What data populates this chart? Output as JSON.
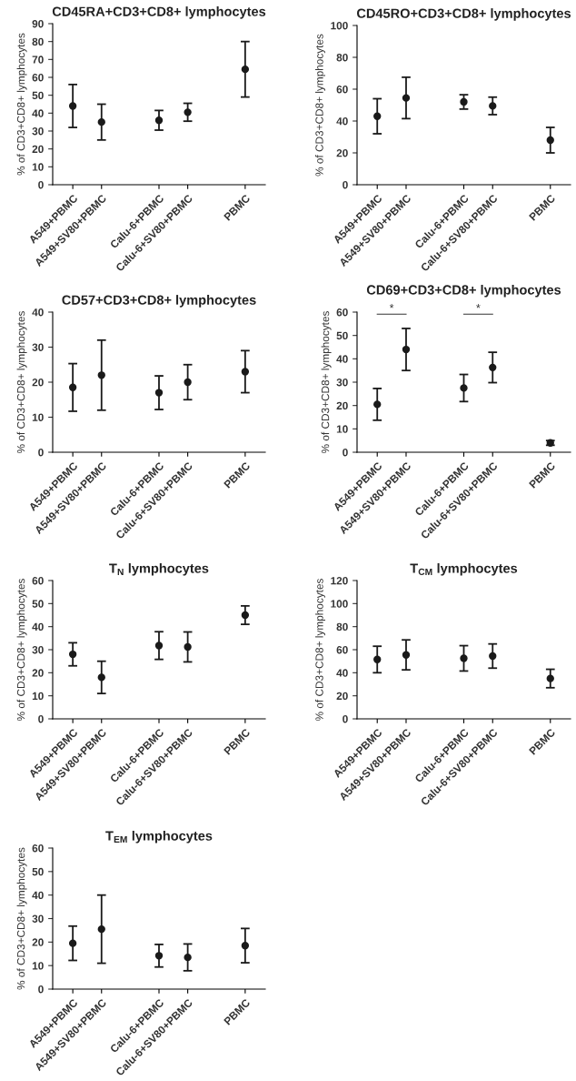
{
  "chart_data": [
    {
      "type": "scatter",
      "title": "CD45RA+CD3+CD8+ lymphocytes",
      "ylabel": "% of CD3+CD8+ lymphocytes",
      "categories": [
        "A549+PBMC",
        "A549+SV80+PBMC",
        null,
        "Calu-6+PBMC",
        "Calu-6+SV80+PBMC",
        null,
        "PBMC"
      ],
      "values": [
        44,
        35,
        null,
        36,
        40.5,
        null,
        64.5
      ],
      "errors": [
        12,
        10,
        null,
        5.5,
        5,
        null,
        15.5
      ],
      "color": "#1a1a1a",
      "marker": "circle",
      "ylim": [
        0,
        90
      ],
      "yticks": [
        0,
        10,
        20,
        30,
        40,
        50,
        60,
        70,
        80,
        90
      ],
      "grid": false
    },
    {
      "type": "scatter",
      "title": "CD45RO+CD3+CD8+ lymphocytes",
      "ylabel": "% of CD3+CD8+ lymphocytes",
      "categories": [
        "A549+PBMC",
        "A549+SV80+PBMC",
        null,
        "Calu-6+PBMC",
        "Calu-6+SV80+PBMC",
        null,
        "PBMC"
      ],
      "values": [
        43,
        54.5,
        null,
        52,
        49.5,
        null,
        28
      ],
      "errors": [
        11,
        13,
        null,
        4.5,
        5.5,
        null,
        8
      ],
      "color": "#1a1a1a",
      "marker": "circle",
      "ylim": [
        0,
        100
      ],
      "yticks": [
        0,
        20,
        40,
        60,
        80,
        100
      ],
      "grid": false
    },
    {
      "type": "scatter",
      "title": "CD57+CD3+CD8+ lymphocytes",
      "ylabel": "% of CD3+CD8+ lymphocytes",
      "categories": [
        "A549+PBMC",
        "A549+SV80+PBMC",
        null,
        "Calu-6+PBMC",
        "Calu-6+SV80+PBMC",
        null,
        "PBMC"
      ],
      "values": [
        18.5,
        22,
        null,
        17,
        20,
        null,
        23
      ],
      "errors": [
        6.8,
        10,
        null,
        4.8,
        5,
        null,
        6
      ],
      "color": "#1a1a1a",
      "marker": "circle",
      "ylim": [
        0,
        40
      ],
      "yticks": [
        0,
        10,
        20,
        30,
        40
      ],
      "grid": false
    },
    {
      "type": "scatter",
      "title": "CD69+CD3+CD8+ lymphocytes",
      "ylabel": "% of CD3+CD8+ lymphocytes",
      "categories": [
        "A549+PBMC",
        "A549+SV80+PBMC",
        null,
        "Calu-6+PBMC",
        "Calu-6+SV80+PBMC",
        null,
        "PBMC"
      ],
      "values": [
        20.5,
        44,
        null,
        27.5,
        36.3,
        null,
        4
      ],
      "errors": [
        6.8,
        9,
        null,
        5.8,
        6.5,
        null,
        1
      ],
      "color": "#1a1a1a",
      "marker": "circle",
      "ylim": [
        0,
        60
      ],
      "yticks": [
        0,
        10,
        20,
        30,
        40,
        50,
        60
      ],
      "grid": false,
      "annotations": [
        "*",
        "*"
      ]
    },
    {
      "type": "scatter",
      "title": "T$_{N}$ lymphocytes",
      "ylabel": "% of CD3+CD8+ lymphocytes",
      "categories": [
        "A549+PBMC",
        "A549+SV80+PBMC",
        null,
        "Calu-6+PBMC",
        "Calu-6+SV80+PBMC",
        null,
        "PBMC"
      ],
      "values": [
        28,
        18,
        null,
        31.8,
        31.2,
        null,
        45
      ],
      "errors": [
        5,
        7,
        null,
        6,
        6.5,
        null,
        4
      ],
      "color": "#1a1a1a",
      "marker": "circle",
      "ylim": [
        0,
        60
      ],
      "yticks": [
        0,
        10,
        20,
        30,
        40,
        50,
        60
      ],
      "grid": false
    },
    {
      "type": "scatter",
      "title": "T$_{CM}$ lymphocytes",
      "ylabel": "% of CD3+CD8+ lymphocytes",
      "categories": [
        "A549+PBMC",
        "A549+SV80+PBMC",
        null,
        "Calu-6+PBMC",
        "Calu-6+SV80+PBMC",
        null,
        "PBMC"
      ],
      "values": [
        51.5,
        55.5,
        null,
        52.5,
        54.5,
        null,
        35
      ],
      "errors": [
        11.5,
        13,
        null,
        11,
        10.5,
        null,
        8
      ],
      "color": "#1a1a1a",
      "marker": "circle",
      "ylim": [
        0,
        120
      ],
      "yticks": [
        0,
        20,
        40,
        60,
        80,
        100,
        120
      ],
      "grid": false
    },
    {
      "type": "scatter",
      "title": "T$_{EM}$ lymphocytes",
      "ylabel": "% of CD3+CD8+ lymphocytes",
      "categories": [
        "A549+PBMC",
        "A549+SV80+PBMC",
        null,
        "Calu-6+PBMC",
        "Calu-6+SV80+PBMC",
        null,
        "PBMC"
      ],
      "values": [
        19.5,
        25.5,
        null,
        14.2,
        13.5,
        null,
        18.5
      ],
      "errors": [
        7.3,
        14.5,
        null,
        4.8,
        5.7,
        null,
        7.3
      ],
      "color": "#1a1a1a",
      "marker": "circle",
      "ylim": [
        0,
        60
      ],
      "yticks": [
        0,
        10,
        20,
        30,
        40,
        50,
        60
      ],
      "grid": false
    }
  ]
}
